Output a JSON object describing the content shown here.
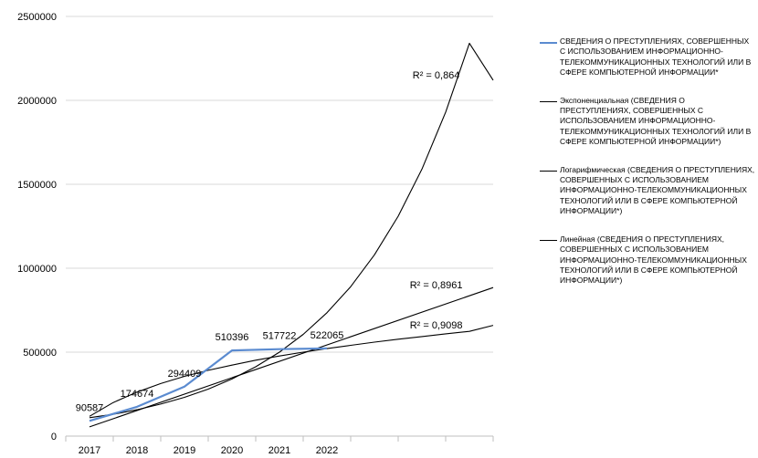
{
  "chart_data": {
    "type": "line",
    "categories": [
      "2017",
      "2018",
      "2019",
      "2020",
      "2021",
      "2022"
    ],
    "series": [
      {
        "name": "СВЕДЕНИЯ О ПРЕСТУПЛЕНИЯХ, СОВЕРШЕННЫХ С ИСПОЛЬЗОВАНИЕМ ИНФОРМАЦИОННО-ТЕЛЕКОММУНИКАЦИОННЫХ ТЕХНОЛОГИЙ ИЛИ В СФЕРЕ КОМПЬЮТЕРНОЙ ИНФОРМАЦИИ*",
        "values": [
          90587,
          174674,
          294409,
          510396,
          517722,
          522065
        ],
        "data_labels": [
          "90587",
          "174674",
          "294409",
          "510396",
          "517722",
          "522065"
        ],
        "color": "#5b8bd0"
      }
    ],
    "trendlines": [
      {
        "type": "exponential",
        "name": "Экспоненциальная (СВЕДЕНИЯ О ПРЕСТУПЛЕНИЯХ, СОВЕРШЕННЫХ С ИСПОЛЬЗОВАНИЕМ ИНФОРМАЦИОННО-ТЕЛЕКОММУНИКАЦИОННЫХ ТЕХНОЛОГИЙ ИЛИ В СФЕРЕ КОМПЬЮТЕРНОЙ ИНФОРМАЦИИ*)",
        "r2_label": "R² = 0,864",
        "x": [
          2017,
          2017.5,
          2018,
          2018.5,
          2019,
          2019.5,
          2020,
          2020.5,
          2021,
          2021.5,
          2022,
          2022.5,
          2023,
          2023.5,
          2024,
          2024.5,
          2025,
          2025.5
        ],
        "y": [
          110000,
          130000,
          157000,
          191000,
          231000,
          280000,
          340000,
          413000,
          500000,
          606000,
          735000,
          890000,
          1080000,
          1310000,
          1590000,
          1930000,
          2340000,
          2120000
        ],
        "color": "#000000"
      },
      {
        "type": "linear",
        "name": "Линейная (СВЕДЕНИЯ О ПРЕСТУПЛЕНИЯХ, СОВЕРШЕННЫХ С ИСПОЛЬЗОВАНИЕМ ИНФОРМАЦИОННО-ТЕЛЕКОММУНИКАЦИОННЫХ ТЕХНОЛОГИЙ ИЛИ В СФЕРЕ КОМПЬЮТЕРНОЙ ИНФОРМАЦИИ*)",
        "r2_label": "R² = 0,8961",
        "x": [
          2017,
          2025.5
        ],
        "y": [
          55000,
          885000
        ],
        "color": "#000000"
      },
      {
        "type": "logarithmic",
        "name": "Логарифмическая (СВЕДЕНИЯ О ПРЕСТУПЛЕНИЯХ, СОВЕРШЕННЫХ С ИСПОЛЬЗОВАНИЕМ ИНФОРМАЦИОННО-ТЕЛЕКОММУНИКАЦИОННЫХ ТЕХНОЛОГИЙ ИЛИ В СФЕРЕ КОМПЬЮТЕРНОЙ ИНФОРМАЦИИ*)",
        "r2_label": "R² = 0,9098",
        "x": [
          2017,
          2017.5,
          2018,
          2018.5,
          2019,
          2019.5,
          2020,
          2020.5,
          2021,
          2021.5,
          2022,
          2022.5,
          2023,
          2023.5,
          2024,
          2024.5,
          2025,
          2025.5
        ],
        "y": [
          118000,
          200000,
          262000,
          313000,
          356000,
          392000,
          423000,
          452000,
          477000,
          500000,
          521000,
          541000,
          560000,
          577000,
          593000,
          609000,
          624000,
          660000
        ],
        "color": "#000000"
      }
    ],
    "yticks": [
      "0",
      "500000",
      "1000000",
      "1500000",
      "2000000",
      "2500000"
    ],
    "ylim": [
      0,
      2500000
    ],
    "xlim": [
      2016.5,
      2025.5
    ],
    "x_tick_positions": [
      2017,
      2018,
      2019,
      2020,
      2021,
      2022
    ],
    "extra_x_tick_marks": [
      2023,
      2024,
      2025
    ],
    "legend_position": "right",
    "grid": false,
    "title": "",
    "xlabel": "",
    "ylabel": ""
  },
  "legend": [
    "СВЕДЕНИЯ О ПРЕСТУПЛЕНИЯХ, СОВЕРШЕННЫХ С ИСПОЛЬЗОВАНИЕМ ИНФОРМАЦИОННО-ТЕЛЕКОММУНИКАЦИОННЫХ ТЕХНОЛОГИЙ ИЛИ В СФЕРЕ КОМПЬЮТЕРНОЙ ИНФОРМАЦИИ*",
    "Экспоненциальная (СВЕДЕНИЯ О ПРЕСТУПЛЕНИЯХ, СОВЕРШЕННЫХ С ИСПОЛЬЗОВАНИЕМ ИНФОРМАЦИОННО-ТЕЛЕКОММУНИКАЦИОННЫХ ТЕХНОЛОГИЙ ИЛИ В СФЕРЕ КОМПЬЮТЕРНОЙ ИНФОРМАЦИИ*)",
    "Логарифмическая (СВЕДЕНИЯ О ПРЕСТУПЛЕНИЯХ, СОВЕРШЕННЫХ С ИСПОЛЬЗОВАНИЕМ ИНФОРМАЦИОННО-ТЕЛЕКОММУНИКАЦИОННЫХ ТЕХНОЛОГИЙ ИЛИ В СФЕРЕ КОМПЬЮТЕРНОЙ ИНФОРМАЦИИ*)",
    "Линейная (СВЕДЕНИЯ О ПРЕСТУПЛЕНИЯХ, СОВЕРШЕННЫХ С ИСПОЛЬЗОВАНИЕМ ИНФОРМАЦИОННО-ТЕЛЕКОММУНИКАЦИОННЫХ ТЕХНОЛОГИЙ ИЛИ В СФЕРЕ КОМПЬЮТЕРНОЙ ИНФОРМАЦИИ*)"
  ]
}
